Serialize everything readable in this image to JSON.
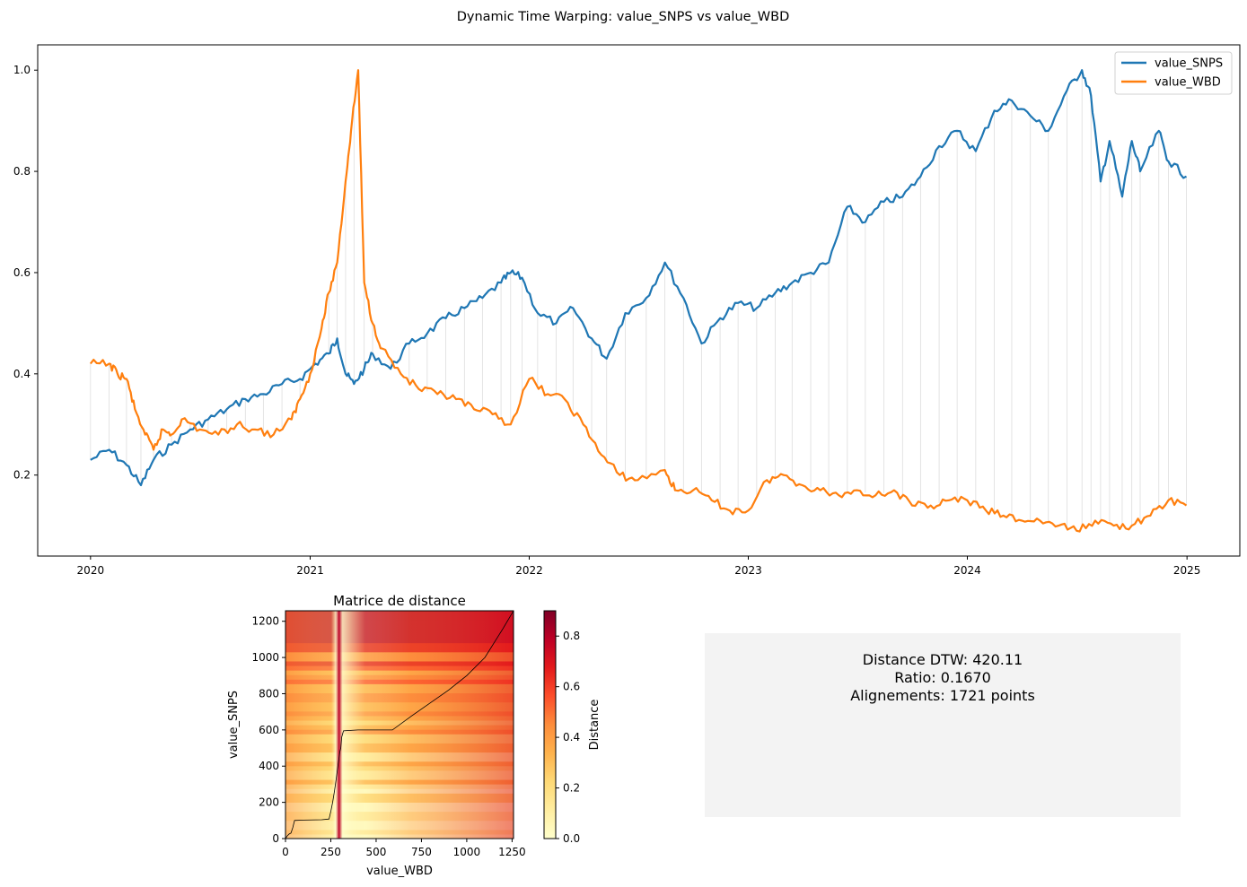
{
  "title": "Dynamic Time Warping: value_SNPS vs value_WBD",
  "chart_data": [
    {
      "type": "line",
      "x_axis": {
        "kind": "date",
        "ticks": [
          "2020",
          "2021",
          "2022",
          "2023",
          "2024",
          "2025"
        ],
        "range": [
          "2019-10-05",
          "2025-03-30"
        ]
      },
      "y_axis": {
        "ticks": [
          "0.2",
          "0.4",
          "0.6",
          "0.8",
          "1.0"
        ],
        "range": [
          0.04,
          1.05
        ]
      },
      "legend": {
        "placement": "top-right"
      },
      "grid": false,
      "series": [
        {
          "name": "value_SNPS",
          "color": "#1f77b4",
          "points": [
            [
              "2020-01-01",
              0.23
            ],
            [
              "2020-02-01",
              0.25
            ],
            [
              "2020-03-01",
              0.22
            ],
            [
              "2020-03-25",
              0.18
            ],
            [
              "2020-04-15",
              0.23
            ],
            [
              "2020-05-15",
              0.26
            ],
            [
              "2020-06-15",
              0.29
            ],
            [
              "2020-07-15",
              0.31
            ],
            [
              "2020-08-15",
              0.33
            ],
            [
              "2020-09-15",
              0.35
            ],
            [
              "2020-10-15",
              0.36
            ],
            [
              "2020-11-15",
              0.38
            ],
            [
              "2020-12-15",
              0.39
            ],
            [
              "2021-01-10",
              0.42
            ],
            [
              "2021-02-01",
              0.44
            ],
            [
              "2021-02-15",
              0.47
            ],
            [
              "2021-03-01",
              0.4
            ],
            [
              "2021-03-15",
              0.38
            ],
            [
              "2021-04-01",
              0.41
            ],
            [
              "2021-04-15",
              0.44
            ],
            [
              "2021-05-15",
              0.41
            ],
            [
              "2021-06-15",
              0.46
            ],
            [
              "2021-07-15",
              0.48
            ],
            [
              "2021-08-15",
              0.51
            ],
            [
              "2021-09-15",
              0.53
            ],
            [
              "2021-10-15",
              0.55
            ],
            [
              "2021-11-15",
              0.58
            ],
            [
              "2021-12-01",
              0.6
            ],
            [
              "2021-12-20",
              0.59
            ],
            [
              "2022-01-15",
              0.52
            ],
            [
              "2022-02-15",
              0.5
            ],
            [
              "2022-03-15",
              0.53
            ],
            [
              "2022-04-15",
              0.47
            ],
            [
              "2022-05-10",
              0.43
            ],
            [
              "2022-06-10",
              0.52
            ],
            [
              "2022-07-15",
              0.55
            ],
            [
              "2022-08-15",
              0.62
            ],
            [
              "2022-09-15",
              0.55
            ],
            [
              "2022-10-15",
              0.46
            ],
            [
              "2022-11-15",
              0.51
            ],
            [
              "2022-12-15",
              0.54
            ],
            [
              "2023-01-15",
              0.53
            ],
            [
              "2023-02-15",
              0.56
            ],
            [
              "2023-03-15",
              0.58
            ],
            [
              "2023-04-15",
              0.6
            ],
            [
              "2023-05-15",
              0.62
            ],
            [
              "2023-06-15",
              0.73
            ],
            [
              "2023-07-15",
              0.7
            ],
            [
              "2023-08-15",
              0.74
            ],
            [
              "2023-09-15",
              0.75
            ],
            [
              "2023-10-15",
              0.79
            ],
            [
              "2023-11-15",
              0.85
            ],
            [
              "2023-12-15",
              0.88
            ],
            [
              "2024-01-15",
              0.84
            ],
            [
              "2024-02-15",
              0.92
            ],
            [
              "2024-03-15",
              0.94
            ],
            [
              "2024-04-15",
              0.91
            ],
            [
              "2024-05-15",
              0.88
            ],
            [
              "2024-06-15",
              0.96
            ],
            [
              "2024-07-10",
              1.0
            ],
            [
              "2024-07-25",
              0.95
            ],
            [
              "2024-08-10",
              0.78
            ],
            [
              "2024-08-25",
              0.86
            ],
            [
              "2024-09-15",
              0.75
            ],
            [
              "2024-10-01",
              0.86
            ],
            [
              "2024-10-15",
              0.8
            ],
            [
              "2024-11-15",
              0.88
            ],
            [
              "2024-12-01",
              0.82
            ],
            [
              "2024-12-31",
              0.79
            ]
          ]
        },
        {
          "name": "value_WBD",
          "color": "#ff7f0e",
          "points": [
            [
              "2020-01-01",
              0.42
            ],
            [
              "2020-02-01",
              0.42
            ],
            [
              "2020-02-15",
              0.4
            ],
            [
              "2020-03-01",
              0.39
            ],
            [
              "2020-03-15",
              0.33
            ],
            [
              "2020-04-01",
              0.28
            ],
            [
              "2020-04-15",
              0.25
            ],
            [
              "2020-05-01",
              0.29
            ],
            [
              "2020-05-15",
              0.28
            ],
            [
              "2020-06-01",
              0.31
            ],
            [
              "2020-07-01",
              0.29
            ],
            [
              "2020-08-01",
              0.28
            ],
            [
              "2020-09-01",
              0.3
            ],
            [
              "2020-10-01",
              0.29
            ],
            [
              "2020-11-01",
              0.28
            ],
            [
              "2020-12-01",
              0.31
            ],
            [
              "2020-12-15",
              0.35
            ],
            [
              "2021-01-01",
              0.4
            ],
            [
              "2021-01-20",
              0.49
            ],
            [
              "2021-02-01",
              0.56
            ],
            [
              "2021-02-15",
              0.62
            ],
            [
              "2021-03-01",
              0.78
            ],
            [
              "2021-03-10",
              0.88
            ],
            [
              "2021-03-22",
              1.0
            ],
            [
              "2021-04-01",
              0.58
            ],
            [
              "2021-04-15",
              0.5
            ],
            [
              "2021-05-01",
              0.45
            ],
            [
              "2021-06-01",
              0.4
            ],
            [
              "2021-07-01",
              0.37
            ],
            [
              "2021-08-01",
              0.36
            ],
            [
              "2021-09-01",
              0.35
            ],
            [
              "2021-10-01",
              0.33
            ],
            [
              "2021-11-01",
              0.32
            ],
            [
              "2021-12-01",
              0.3
            ],
            [
              "2022-01-01",
              0.39
            ],
            [
              "2022-02-01",
              0.36
            ],
            [
              "2022-03-01",
              0.35
            ],
            [
              "2022-04-01",
              0.3
            ],
            [
              "2022-05-01",
              0.24
            ],
            [
              "2022-06-01",
              0.2
            ],
            [
              "2022-07-01",
              0.19
            ],
            [
              "2022-08-15",
              0.21
            ],
            [
              "2022-09-01",
              0.17
            ],
            [
              "2022-10-01",
              0.17
            ],
            [
              "2022-11-01",
              0.15
            ],
            [
              "2022-12-01",
              0.13
            ],
            [
              "2023-01-01",
              0.13
            ],
            [
              "2023-02-01",
              0.19
            ],
            [
              "2023-03-01",
              0.2
            ],
            [
              "2023-04-01",
              0.18
            ],
            [
              "2023-05-01",
              0.17
            ],
            [
              "2023-06-01",
              0.16
            ],
            [
              "2023-07-01",
              0.17
            ],
            [
              "2023-08-01",
              0.16
            ],
            [
              "2023-09-01",
              0.17
            ],
            [
              "2023-10-01",
              0.14
            ],
            [
              "2023-11-01",
              0.14
            ],
            [
              "2023-12-01",
              0.15
            ],
            [
              "2024-01-01",
              0.15
            ],
            [
              "2024-02-01",
              0.13
            ],
            [
              "2024-03-01",
              0.12
            ],
            [
              "2024-04-01",
              0.11
            ],
            [
              "2024-05-01",
              0.11
            ],
            [
              "2024-06-01",
              0.1
            ],
            [
              "2024-07-01",
              0.09
            ],
            [
              "2024-08-01",
              0.11
            ],
            [
              "2024-09-01",
              0.1
            ],
            [
              "2024-10-01",
              0.1
            ],
            [
              "2024-11-01",
              0.12
            ],
            [
              "2024-12-01",
              0.15
            ],
            [
              "2024-12-31",
              0.14
            ]
          ]
        }
      ]
    },
    {
      "type": "heatmap",
      "title": "Matrice de distance",
      "xlabel": "value_WBD",
      "ylabel": "value_SNPS",
      "x_ticks": [
        "0",
        "250",
        "500",
        "750",
        "1000",
        "1250"
      ],
      "y_ticks": [
        "0",
        "200",
        "400",
        "600",
        "800",
        "1000",
        "1200"
      ],
      "xlim": [
        0,
        1258
      ],
      "ylim": [
        0,
        1258
      ],
      "colormap": "YlOrRd",
      "colorbar": {
        "label": "Distance",
        "ticks": [
          "0.0",
          "0.2",
          "0.4",
          "0.6",
          "0.8"
        ],
        "range": [
          0,
          0.9
        ]
      },
      "warping_path": [
        [
          0,
          0
        ],
        [
          10,
          15
        ],
        [
          20,
          25
        ],
        [
          30,
          30
        ],
        [
          40,
          60
        ],
        [
          50,
          100
        ],
        [
          100,
          102
        ],
        [
          200,
          104
        ],
        [
          240,
          108
        ],
        [
          250,
          150
        ],
        [
          260,
          200
        ],
        [
          270,
          260
        ],
        [
          280,
          330
        ],
        [
          290,
          410
        ],
        [
          300,
          480
        ],
        [
          305,
          500
        ],
        [
          310,
          560
        ],
        [
          320,
          595
        ],
        [
          400,
          600
        ],
        [
          500,
          600
        ],
        [
          590,
          600
        ],
        [
          700,
          680
        ],
        [
          800,
          750
        ],
        [
          900,
          820
        ],
        [
          1000,
          900
        ],
        [
          1100,
          1000
        ],
        [
          1200,
          1160
        ],
        [
          1258,
          1258
        ]
      ]
    }
  ],
  "info": {
    "distance": "Distance DTW: 420.11",
    "ratio": "Ratio: 0.1670",
    "alignments": "Alignements: 1721 points"
  }
}
